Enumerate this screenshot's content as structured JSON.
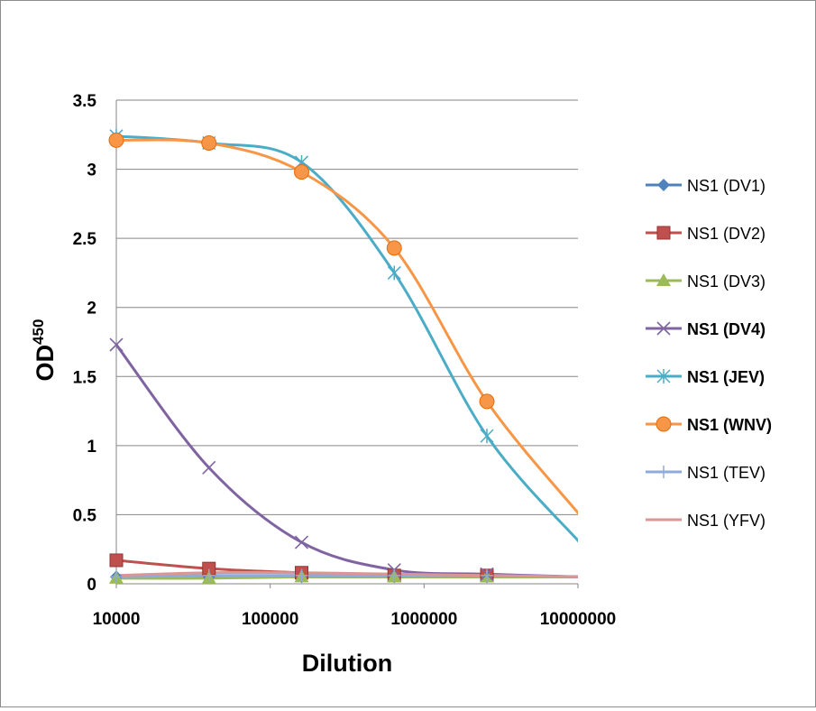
{
  "chart_data": {
    "type": "line",
    "title": "",
    "xlabel": "Dilution",
    "ylabel": {
      "main": "OD",
      "superscript": "450"
    },
    "x_scale": "log",
    "xlim": [
      10000,
      10000000
    ],
    "ylim": [
      0,
      3.5
    ],
    "x_ticks": [
      "10000",
      "100000",
      "1000000",
      "10000000"
    ],
    "y_ticks": [
      "0",
      "0.5",
      "1",
      "1.5",
      "2",
      "2.5",
      "3",
      "3.5"
    ],
    "grid": "horizontal",
    "legend_position": "right",
    "x": [
      10000,
      40000,
      160000,
      640000,
      2560000,
      10240000
    ],
    "series": [
      {
        "name": "NS1 (DV1)",
        "color": "#4f81bd",
        "marker": "diamond",
        "bold": false,
        "values": [
          0.05,
          0.05,
          0.05,
          0.05,
          0.05,
          0.05
        ]
      },
      {
        "name": "NS1 (DV2)",
        "color": "#c0504d",
        "marker": "square",
        "bold": false,
        "values": [
          0.17,
          0.11,
          0.08,
          0.06,
          0.06,
          0.05
        ]
      },
      {
        "name": "NS1 (DV3)",
        "color": "#9bbb59",
        "marker": "triangle",
        "bold": false,
        "values": [
          0.04,
          0.04,
          0.05,
          0.05,
          0.05,
          0.05
        ]
      },
      {
        "name": "NS1 (DV4)",
        "color": "#8064a2",
        "marker": "x",
        "bold": true,
        "values": [
          1.73,
          0.84,
          0.3,
          0.1,
          0.07,
          0.05
        ]
      },
      {
        "name": "NS1 (JEV)",
        "color": "#4bacc6",
        "marker": "star",
        "bold": true,
        "values": [
          3.24,
          3.19,
          3.05,
          2.25,
          1.07,
          0.3
        ]
      },
      {
        "name": "NS1 (WNV)",
        "color": "#f79646",
        "marker": "circle",
        "bold": true,
        "values": [
          3.21,
          3.19,
          2.98,
          2.43,
          1.32,
          0.5
        ]
      },
      {
        "name": "NS1 (TEV)",
        "color": "#8faadc",
        "marker": "plus",
        "bold": false,
        "values": [
          0.05,
          0.06,
          0.06,
          0.06,
          0.06,
          0.05
        ]
      },
      {
        "name": "NS1 (YFV)",
        "color": "#d99694",
        "marker": "none",
        "bold": false,
        "values": [
          0.06,
          0.08,
          0.08,
          0.07,
          0.06,
          0.05
        ]
      }
    ]
  }
}
